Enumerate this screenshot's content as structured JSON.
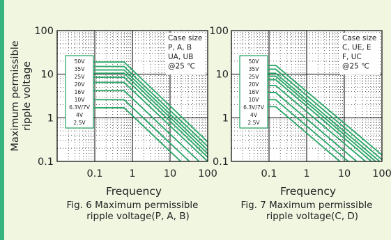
{
  "ylabel_lines": [
    "Maximum permissible",
    "ripple voltage"
  ],
  "colors": {
    "line": "#2ea86a",
    "grid": "#444444",
    "frame": "#000000",
    "text": "#222222",
    "background": "#f1f6e1",
    "accent_bar": "#37b37e"
  },
  "chart_data": [
    {
      "type": "line",
      "title": "",
      "xlabel": "Frequency",
      "ylabel": "Maximum permissible ripple voltage",
      "x_scale": "log",
      "y_scale": "log",
      "xlim": [
        0.01,
        100
      ],
      "ylim": [
        0.1,
        100
      ],
      "x_ticks": [
        "0.1",
        "1",
        "10",
        "100"
      ],
      "y_ticks": [
        "100",
        "10",
        "1",
        "0.1"
      ],
      "grid": true,
      "legend_position": "left",
      "note_lines": [
        "Case size",
        "P, A, B",
        "UA, UB",
        "@25 ℃"
      ],
      "caption_lines": [
        "Fig. 6 Maximum permissible",
        "ripple voltage(P, A, B)"
      ],
      "series": [
        {
          "name": "50V",
          "points": [
            [
              0.03,
              19
            ],
            [
              0.6,
              19
            ],
            [
              100,
              0.28
            ]
          ]
        },
        {
          "name": "35V",
          "points": [
            [
              0.03,
              15
            ],
            [
              0.6,
              15
            ],
            [
              100,
              0.22
            ]
          ]
        },
        {
          "name": "25V",
          "points": [
            [
              0.03,
              12.5
            ],
            [
              0.6,
              12.5
            ],
            [
              100,
              0.18
            ]
          ]
        },
        {
          "name": "20V",
          "points": [
            [
              0.03,
              10.5
            ],
            [
              0.6,
              10.5
            ],
            [
              100,
              0.15
            ]
          ]
        },
        {
          "name": "16V",
          "points": [
            [
              0.03,
              8.5
            ],
            [
              0.6,
              8.5
            ],
            [
              100,
              0.125
            ]
          ]
        },
        {
          "name": "10V",
          "points": [
            [
              0.03,
              6.5
            ],
            [
              0.6,
              6.5
            ],
            [
              100,
              0.1
            ]
          ]
        },
        {
          "name": "6.3V/7V",
          "points": [
            [
              0.03,
              4.2
            ],
            [
              0.6,
              4.2
            ],
            [
              100,
              0.065
            ]
          ]
        },
        {
          "name": "4V",
          "points": [
            [
              0.03,
              2.6
            ],
            [
              0.6,
              2.6
            ],
            [
              100,
              0.04
            ]
          ]
        },
        {
          "name": "2.5V",
          "points": [
            [
              0.03,
              1.7
            ],
            [
              0.6,
              1.7
            ],
            [
              100,
              0.026
            ]
          ]
        }
      ]
    },
    {
      "type": "line",
      "title": "",
      "xlabel": "Frequency",
      "ylabel": "",
      "x_scale": "log",
      "y_scale": "log",
      "xlim": [
        0.01,
        100
      ],
      "ylim": [
        0.1,
        100
      ],
      "x_ticks": [
        "0.1",
        "1",
        "10",
        "100"
      ],
      "y_ticks": [
        "100",
        "10",
        "1",
        "0.1"
      ],
      "grid": true,
      "legend_position": "left",
      "note_lines": [
        "Case size",
        "C, UE, E",
        "F, UC",
        "@25 ℃"
      ],
      "caption_lines": [
        "Fig. 7 Maximum permissible",
        "ripple voltage(C, D)"
      ],
      "series": [
        {
          "name": "50V",
          "points": [
            [
              0.03,
              16
            ],
            [
              0.15,
              16
            ],
            [
              100,
              0.14
            ]
          ]
        },
        {
          "name": "35V",
          "points": [
            [
              0.03,
              13
            ],
            [
              0.15,
              13
            ],
            [
              100,
              0.11
            ]
          ]
        },
        {
          "name": "25V",
          "points": [
            [
              0.03,
              10.5
            ],
            [
              0.15,
              10.5
            ],
            [
              100,
              0.09
            ]
          ]
        },
        {
          "name": "20V",
          "points": [
            [
              0.03,
              9
            ],
            [
              0.15,
              9
            ],
            [
              100,
              0.075
            ]
          ]
        },
        {
          "name": "16V",
          "points": [
            [
              0.03,
              7.5
            ],
            [
              0.15,
              7.5
            ],
            [
              100,
              0.062
            ]
          ]
        },
        {
          "name": "10V",
          "points": [
            [
              0.03,
              5.5
            ],
            [
              0.15,
              5.5
            ],
            [
              100,
              0.048
            ]
          ]
        },
        {
          "name": "6.3V/7V",
          "points": [
            [
              0.03,
              3.8
            ],
            [
              0.15,
              3.8
            ],
            [
              100,
              0.032
            ]
          ]
        },
        {
          "name": "4V",
          "points": [
            [
              0.03,
              2.6
            ],
            [
              0.15,
              2.6
            ],
            [
              100,
              0.022
            ]
          ]
        },
        {
          "name": "2.5V",
          "points": [
            [
              0.03,
              1.8
            ],
            [
              0.15,
              1.8
            ],
            [
              100,
              0.015
            ]
          ]
        }
      ]
    }
  ]
}
